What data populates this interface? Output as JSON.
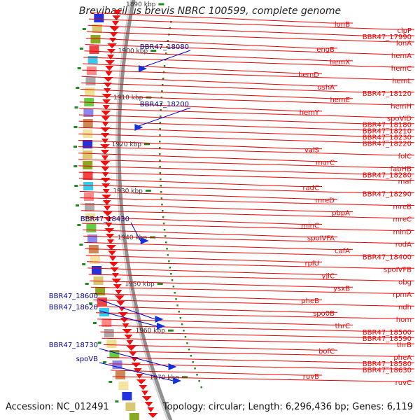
{
  "title": "Brevibacillus brevis NBRC 100599, complete genome",
  "accession_text": "Accession: NC_012491",
  "summary_text": "Topology: circular; Length: 6,296,436 bp; Genes: 6,119",
  "colors": {
    "backbone": "#909090",
    "right_label": "#ee0000",
    "left_label": "#00008b",
    "tick": "#228b22",
    "kbp_text": "#333333"
  },
  "kbp_ticks": [
    "1890 kbp",
    "1900 kbp",
    "1910 kbp",
    "1920 kbp",
    "1930 kbp",
    "1940 kbp",
    "1950 kbp",
    "1960 kbp",
    "1970 kbp"
  ],
  "right_labels": [
    "lonB",
    "clpP",
    "BBR47_17990",
    "lonA",
    "engB",
    "hemA",
    "hemX",
    "hemC",
    "hemD",
    "hemL",
    "ushA",
    "BBR47_18120",
    "hemE",
    "hemH",
    "hemY",
    "spoVID",
    "BBR47_18180",
    "BBR47_18210",
    "BBR47_18230",
    "BBR47_18220",
    "valS",
    "folC",
    "murC",
    "fabHB",
    "BBR47_18280",
    "maf",
    "radC",
    "BBR47_18290",
    "mreD",
    "mreB",
    "pbpA",
    "mreC",
    "minC",
    "minD",
    "spoIVFA",
    "rodA",
    "cafA",
    "BBR47_18400",
    "rplU",
    "spoIVFB",
    "yjlC",
    "obg",
    "ysxB",
    "rpmA",
    "pheB",
    "ndh",
    "spo0B",
    "hom",
    "thrC",
    "BBR47_18500",
    "BBR47_18590",
    "thrB",
    "bofC",
    "pheA",
    "BBR47_18580",
    "BBR47_18630",
    "ruvB",
    "ruvC"
  ],
  "left_labels": [
    "BBR47_18080",
    "BBR47_18200",
    "BBR47_18430",
    "BBR47_18600",
    "BBR47_18620",
    "BBR47_18730",
    "spoVB"
  ]
}
